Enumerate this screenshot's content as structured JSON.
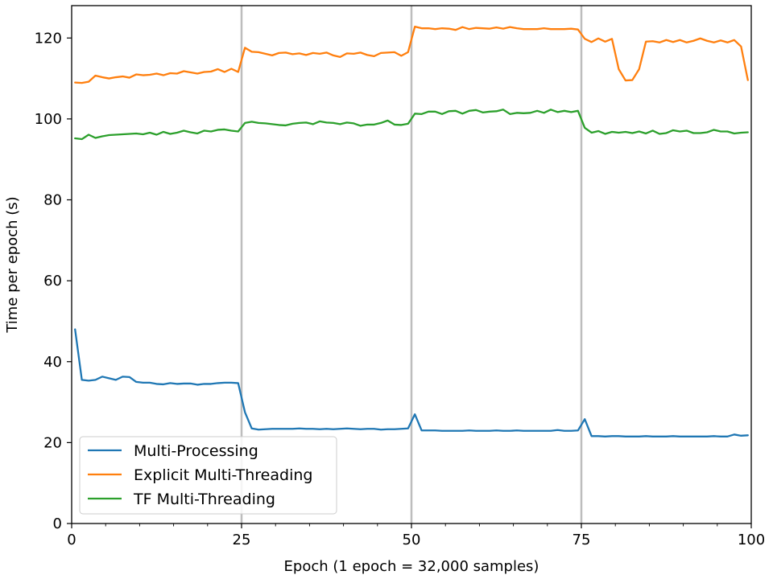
{
  "chart_data": {
    "type": "line",
    "title": "",
    "xlabel": "Epoch (1 epoch = 32,000 samples)",
    "ylabel": "Time per epoch (s)",
    "xlim": [
      0,
      100
    ],
    "ylim": [
      0,
      128
    ],
    "xticks": [
      "0",
      "25",
      "50",
      "75",
      "100"
    ],
    "yticks": [
      "0",
      "20",
      "40",
      "60",
      "80",
      "100",
      "120"
    ],
    "vertical_lines": [
      25,
      50,
      75
    ],
    "grid": false,
    "legend_position": "lower-left",
    "series": [
      {
        "name": "Multi-Processing",
        "color": "#1f77b4",
        "x": [
          0.5,
          1.5,
          2.5,
          3.5,
          4.5,
          5.5,
          6.5,
          7.5,
          8.5,
          9.5,
          10.5,
          11.5,
          12.5,
          13.5,
          14.5,
          15.5,
          16.5,
          17.5,
          18.5,
          19.5,
          20.5,
          21.5,
          22.5,
          23.5,
          24.5,
          25.5,
          26.5,
          27.5,
          28.5,
          29.5,
          30.5,
          31.5,
          32.5,
          33.5,
          34.5,
          35.5,
          36.5,
          37.5,
          38.5,
          39.5,
          40.5,
          41.5,
          42.5,
          43.5,
          44.5,
          45.5,
          46.5,
          47.5,
          48.5,
          49.5,
          50.5,
          51.5,
          52.5,
          53.5,
          54.5,
          55.5,
          56.5,
          57.5,
          58.5,
          59.5,
          60.5,
          61.5,
          62.5,
          63.5,
          64.5,
          65.5,
          66.5,
          67.5,
          68.5,
          69.5,
          70.5,
          71.5,
          72.5,
          73.5,
          74.5,
          75.5,
          76.5,
          77.5,
          78.5,
          79.5,
          80.5,
          81.5,
          82.5,
          83.5,
          84.5,
          85.5,
          86.5,
          87.5,
          88.5,
          89.5,
          90.5,
          91.5,
          92.5,
          93.5,
          94.5,
          95.5,
          96.5,
          97.5,
          98.5,
          99.5
        ],
        "y": [
          48.0,
          35.5,
          35.3,
          35.5,
          36.3,
          35.9,
          35.5,
          36.3,
          36.2,
          35.0,
          34.8,
          34.8,
          34.5,
          34.4,
          34.7,
          34.5,
          34.6,
          34.6,
          34.3,
          34.5,
          34.5,
          34.7,
          34.8,
          34.8,
          34.7,
          27.5,
          23.5,
          23.2,
          23.3,
          23.4,
          23.4,
          23.4,
          23.4,
          23.5,
          23.4,
          23.4,
          23.3,
          23.4,
          23.3,
          23.4,
          23.5,
          23.4,
          23.3,
          23.4,
          23.4,
          23.2,
          23.3,
          23.3,
          23.4,
          23.5,
          27.0,
          23.0,
          23.0,
          23.0,
          22.9,
          22.9,
          22.9,
          22.9,
          23.0,
          22.9,
          22.9,
          22.9,
          23.0,
          22.9,
          22.9,
          23.0,
          22.9,
          22.9,
          22.9,
          22.9,
          22.9,
          23.1,
          22.9,
          22.9,
          23.0,
          25.8,
          21.6,
          21.6,
          21.5,
          21.6,
          21.6,
          21.5,
          21.5,
          21.5,
          21.6,
          21.5,
          21.5,
          21.5,
          21.6,
          21.5,
          21.5,
          21.5,
          21.5,
          21.5,
          21.6,
          21.5,
          21.5,
          22.0,
          21.7,
          21.8
        ]
      },
      {
        "name": "Explicit Multi-Threading",
        "color": "#ff7f0e",
        "x": [
          0.5,
          1.5,
          2.5,
          3.5,
          4.5,
          5.5,
          6.5,
          7.5,
          8.5,
          9.5,
          10.5,
          11.5,
          12.5,
          13.5,
          14.5,
          15.5,
          16.5,
          17.5,
          18.5,
          19.5,
          20.5,
          21.5,
          22.5,
          23.5,
          24.5,
          25.5,
          26.5,
          27.5,
          28.5,
          29.5,
          30.5,
          31.5,
          32.5,
          33.5,
          34.5,
          35.5,
          36.5,
          37.5,
          38.5,
          39.5,
          40.5,
          41.5,
          42.5,
          43.5,
          44.5,
          45.5,
          46.5,
          47.5,
          48.5,
          49.5,
          50.5,
          51.5,
          52.5,
          53.5,
          54.5,
          55.5,
          56.5,
          57.5,
          58.5,
          59.5,
          60.5,
          61.5,
          62.5,
          63.5,
          64.5,
          65.5,
          66.5,
          67.5,
          68.5,
          69.5,
          70.5,
          71.5,
          72.5,
          73.5,
          74.5,
          75.5,
          76.5,
          77.5,
          78.5,
          79.5,
          80.5,
          81.5,
          82.5,
          83.5,
          84.5,
          85.5,
          86.5,
          87.5,
          88.5,
          89.5,
          90.5,
          91.5,
          92.5,
          93.5,
          94.5,
          95.5,
          96.5,
          97.5,
          98.5,
          99.5
        ],
        "y": [
          109.0,
          108.9,
          109.2,
          110.7,
          110.3,
          110.0,
          110.3,
          110.5,
          110.2,
          111.0,
          110.8,
          110.9,
          111.2,
          110.8,
          111.3,
          111.2,
          111.8,
          111.5,
          111.2,
          111.6,
          111.7,
          112.3,
          111.6,
          112.4,
          111.6,
          117.6,
          116.6,
          116.5,
          116.1,
          115.7,
          116.3,
          116.4,
          116.0,
          116.2,
          115.8,
          116.3,
          116.1,
          116.4,
          115.7,
          115.3,
          116.2,
          116.1,
          116.4,
          115.8,
          115.5,
          116.3,
          116.4,
          116.5,
          115.6,
          116.5,
          122.8,
          122.4,
          122.4,
          122.2,
          122.4,
          122.3,
          122.0,
          122.7,
          122.2,
          122.5,
          122.4,
          122.3,
          122.6,
          122.3,
          122.7,
          122.4,
          122.2,
          122.2,
          122.2,
          122.4,
          122.2,
          122.2,
          122.2,
          122.3,
          122.1,
          119.8,
          119.0,
          119.9,
          119.1,
          119.8,
          112.3,
          109.5,
          109.6,
          112.3,
          119.1,
          119.2,
          118.9,
          119.5,
          119.0,
          119.5,
          118.9,
          119.3,
          119.9,
          119.3,
          118.9,
          119.4,
          118.9,
          119.5,
          117.9,
          109.6
        ]
      },
      {
        "name": "TF Multi-Threading",
        "color": "#2ca02c",
        "x": [
          0.5,
          1.5,
          2.5,
          3.5,
          4.5,
          5.5,
          6.5,
          7.5,
          8.5,
          9.5,
          10.5,
          11.5,
          12.5,
          13.5,
          14.5,
          15.5,
          16.5,
          17.5,
          18.5,
          19.5,
          20.5,
          21.5,
          22.5,
          23.5,
          24.5,
          25.5,
          26.5,
          27.5,
          28.5,
          29.5,
          30.5,
          31.5,
          32.5,
          33.5,
          34.5,
          35.5,
          36.5,
          37.5,
          38.5,
          39.5,
          40.5,
          41.5,
          42.5,
          43.5,
          44.5,
          45.5,
          46.5,
          47.5,
          48.5,
          49.5,
          50.5,
          51.5,
          52.5,
          53.5,
          54.5,
          55.5,
          56.5,
          57.5,
          58.5,
          59.5,
          60.5,
          61.5,
          62.5,
          63.5,
          64.5,
          65.5,
          66.5,
          67.5,
          68.5,
          69.5,
          70.5,
          71.5,
          72.5,
          73.5,
          74.5,
          75.5,
          76.5,
          77.5,
          78.5,
          79.5,
          80.5,
          81.5,
          82.5,
          83.5,
          84.5,
          85.5,
          86.5,
          87.5,
          88.5,
          89.5,
          90.5,
          91.5,
          92.5,
          93.5,
          94.5,
          95.5,
          96.5,
          97.5,
          98.5,
          99.5
        ],
        "y": [
          95.2,
          95.0,
          96.1,
          95.3,
          95.7,
          96.0,
          96.1,
          96.2,
          96.3,
          96.4,
          96.2,
          96.6,
          96.1,
          96.8,
          96.3,
          96.6,
          97.1,
          96.7,
          96.4,
          97.1,
          96.9,
          97.3,
          97.4,
          97.1,
          96.9,
          99.0,
          99.3,
          99.0,
          98.9,
          98.7,
          98.5,
          98.4,
          98.8,
          99.0,
          99.1,
          98.7,
          99.4,
          99.1,
          99.0,
          98.7,
          99.1,
          98.9,
          98.3,
          98.6,
          98.6,
          99.0,
          99.6,
          98.6,
          98.5,
          98.8,
          101.3,
          101.2,
          101.8,
          101.8,
          101.2,
          101.9,
          102.0,
          101.3,
          102.0,
          102.2,
          101.6,
          101.8,
          101.9,
          102.3,
          101.2,
          101.5,
          101.4,
          101.5,
          102.0,
          101.5,
          102.3,
          101.7,
          102.0,
          101.7,
          102.0,
          97.8,
          96.6,
          97.0,
          96.3,
          96.8,
          96.6,
          96.8,
          96.5,
          96.9,
          96.4,
          97.1,
          96.3,
          96.5,
          97.2,
          96.9,
          97.1,
          96.5,
          96.5,
          96.7,
          97.3,
          96.9,
          96.9,
          96.4,
          96.6,
          96.7
        ]
      }
    ]
  }
}
